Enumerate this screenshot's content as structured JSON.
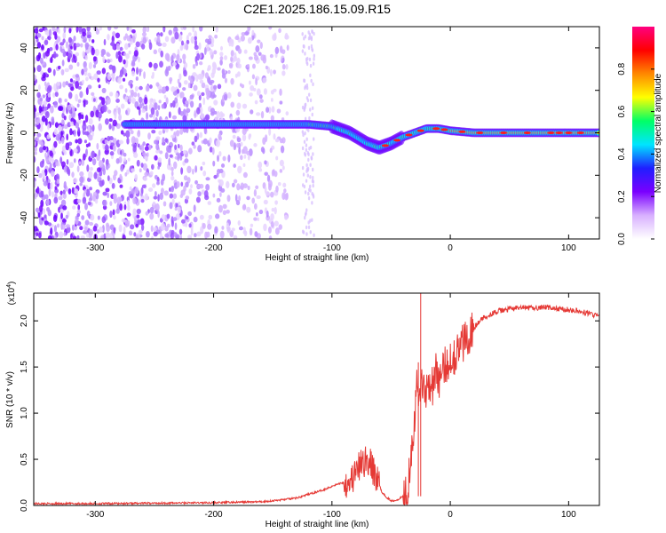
{
  "title": "C2E1.2025.186.15.09.R15",
  "chart_data": [
    {
      "type": "heatmap",
      "xlabel": "Height of straight line (km)",
      "ylabel": "Frequency (Hz)",
      "xlim": [
        -352,
        126
      ],
      "ylim": [
        -50,
        50
      ],
      "xticks": [
        -300,
        -200,
        -100,
        0,
        100
      ],
      "yticks": [
        -40,
        -20,
        0,
        20,
        40
      ],
      "colorbar": {
        "label": "Normalized spectral amplitude",
        "range": [
          0,
          1
        ],
        "ticks": [
          "0.0",
          "0.2",
          "0.4",
          "0.6",
          "0.8"
        ],
        "colors": [
          "#ffffff",
          "#d8b0ff",
          "#7a00ff",
          "#1f1fff",
          "#00e5ff",
          "#00ff66",
          "#ffff00",
          "#ff8800",
          "#ff0000",
          "#ff0080"
        ]
      },
      "ridge": {
        "name": "signal frequency",
        "x": [
          -275,
          -250,
          -200,
          -150,
          -120,
          -100,
          -85,
          -70,
          -60,
          -50,
          -40,
          -30,
          -20,
          -10,
          0,
          20,
          60,
          100,
          126
        ],
        "y": [
          4,
          4,
          4,
          4,
          4,
          3,
          0,
          -5,
          -7,
          -5,
          -2,
          0,
          2,
          2,
          1,
          0,
          0,
          0,
          0
        ]
      }
    },
    {
      "type": "line",
      "xlabel": "Height of straight line (km)",
      "ylabel": "SNR (10 * v/v)",
      "scale_label": "(x10",
      "scale_exp": "4",
      "xlim": [
        -352,
        126
      ],
      "ylim": [
        0,
        2.3
      ],
      "xticks": [
        -300,
        -200,
        -100,
        0,
        100
      ],
      "yticks": [
        "0.0",
        "0.5",
        "1.0",
        "1.5",
        "2.0"
      ],
      "line_color": "#e53935",
      "series": [
        {
          "x": [
            -352,
            -300,
            -200,
            -160,
            -150,
            -130,
            -120,
            -112,
            -105,
            -98,
            -90,
            -82,
            -75,
            -70,
            -66,
            -62,
            -58,
            -55,
            -50,
            -45,
            -40,
            -36,
            -33,
            -30,
            -28,
            -26,
            -24,
            -22,
            -20,
            -18,
            -15,
            -12,
            -10,
            -8,
            -5,
            -2,
            0,
            5,
            10,
            15,
            20,
            25,
            30,
            40,
            50,
            60,
            70,
            80,
            90,
            100,
            110,
            120,
            126
          ],
          "y": [
            0.02,
            0.02,
            0.03,
            0.04,
            0.05,
            0.08,
            0.12,
            0.15,
            0.18,
            0.22,
            0.25,
            0.3,
            0.45,
            0.5,
            0.4,
            0.3,
            0.15,
            0.1,
            0.05,
            0.06,
            0.1,
            0.2,
            0.6,
            1.0,
            1.3,
            1.2,
            1.4,
            1.2,
            1.3,
            1.35,
            1.3,
            1.45,
            1.4,
            1.35,
            1.5,
            1.55,
            1.6,
            1.65,
            1.75,
            1.85,
            1.92,
            2.0,
            2.05,
            2.1,
            2.13,
            2.14,
            2.14,
            2.15,
            2.13,
            2.12,
            2.1,
            2.07,
            2.05
          ]
        }
      ],
      "spikes": [
        {
          "x": -25,
          "y": 2.3
        },
        {
          "x": -27,
          "y": 1.55
        }
      ]
    }
  ]
}
